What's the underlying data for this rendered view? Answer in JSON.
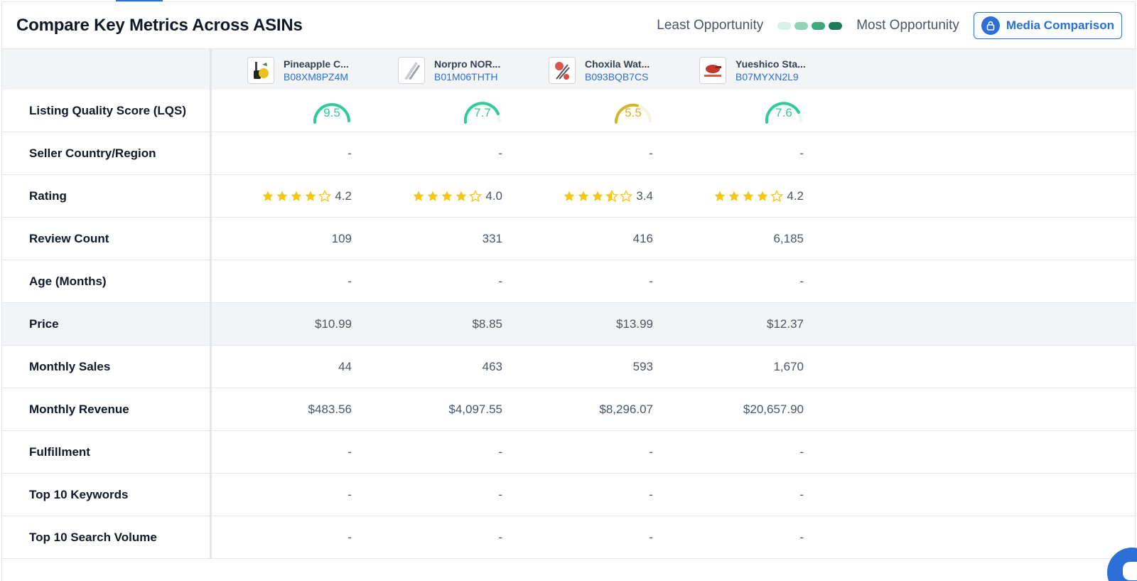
{
  "header": {
    "title": "Compare Key Metrics Across ASINs",
    "least_label": "Least Opportunity",
    "most_label": "Most Opportunity",
    "opportunity_colors": [
      "#d7f1e7",
      "#8fd4b8",
      "#3fa67d",
      "#1f7a58"
    ],
    "media_button": "Media Comparison"
  },
  "products": [
    {
      "name": "Pineapple C...",
      "asin": "B08XM8PZ4M"
    },
    {
      "name": "Norpro NOR...",
      "asin": "B01M06THTH"
    },
    {
      "name": "Choxila Wat...",
      "asin": "B093BQB7CS"
    },
    {
      "name": "Yueshico Sta...",
      "asin": "B07MYXN2L9"
    }
  ],
  "rows": {
    "lqs": {
      "label": "Listing Quality Score (LQS)",
      "values": [
        "9.5",
        "7.7",
        "5.5",
        "7.6"
      ]
    },
    "seller": {
      "label": "Seller Country/Region",
      "values": [
        "-",
        "-",
        "-",
        "-"
      ]
    },
    "rating": {
      "label": "Rating",
      "values": [
        "4.2",
        "4.0",
        "3.4",
        "4.2"
      ]
    },
    "reviews": {
      "label": "Review Count",
      "values": [
        "109",
        "331",
        "416",
        "6,185"
      ]
    },
    "age": {
      "label": "Age (Months)",
      "values": [
        "-",
        "-",
        "-",
        "-"
      ]
    },
    "price": {
      "label": "Price",
      "values": [
        "$10.99",
        "$8.85",
        "$13.99",
        "$12.37"
      ]
    },
    "sales": {
      "label": "Monthly Sales",
      "values": [
        "44",
        "463",
        "593",
        "1,670"
      ]
    },
    "revenue": {
      "label": "Monthly Revenue",
      "values": [
        "$483.56",
        "$4,097.55",
        "$8,296.07",
        "$20,657.90"
      ]
    },
    "fulfillment": {
      "label": "Fulfillment",
      "values": [
        "-",
        "-",
        "-",
        "-"
      ]
    },
    "keywords": {
      "label": "Top 10 Keywords",
      "values": [
        "-",
        "-",
        "-",
        "-"
      ]
    },
    "search_volume": {
      "label": "Top 10 Search Volume",
      "values": [
        "-",
        "-",
        "-",
        "-"
      ]
    }
  },
  "colors": {
    "accent": "#2b6fd6",
    "lqs_high": "#34c99a",
    "lqs_mid": "#d8b22a",
    "star": "#f5c518"
  }
}
